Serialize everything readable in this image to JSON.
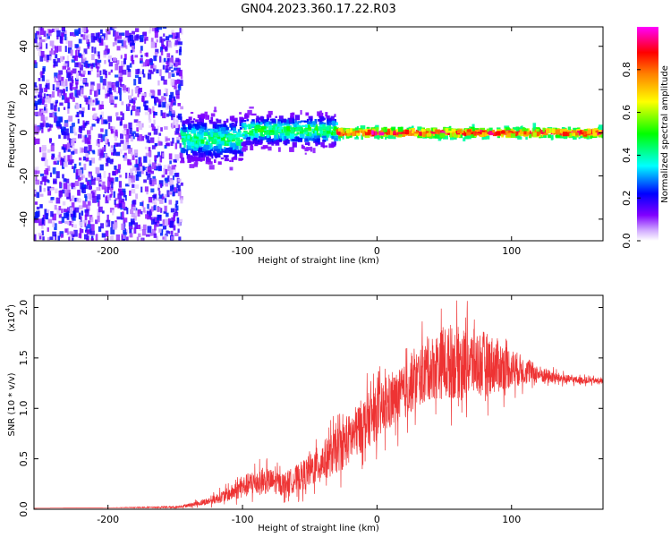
{
  "title": "GN04.2023.360.17.22.R03",
  "chart_data": [
    {
      "type": "heatmap",
      "title": "GN04.2023.360.17.22.R03",
      "xlabel": "Height of straight line (km)",
      "ylabel": "Frequency (Hz)",
      "xlim": [
        -255,
        168
      ],
      "ylim": [
        -50,
        49
      ],
      "xticks": [
        -200,
        -100,
        0,
        100
      ],
      "yticks": [
        -40,
        -20,
        0,
        20,
        40
      ],
      "xtick_labels": [
        "-200",
        "-100",
        "0",
        "100"
      ],
      "ytick_labels": [
        "-40",
        "-20",
        "0",
        "20",
        "40"
      ],
      "regions": [
        {
          "x_range": [
            -255,
            -145
          ],
          "description_level": "noise",
          "amplitude_range": [
            0.02,
            0.25
          ],
          "freq_spread": [
            -50,
            49
          ]
        },
        {
          "x_range": [
            -145,
            -100
          ],
          "center_freq": -3,
          "half_width": 10,
          "amplitude_range": [
            0.1,
            0.5
          ]
        },
        {
          "x_range": [
            -100,
            -30
          ],
          "center_freq": 1,
          "half_width": 7,
          "amplitude_range": [
            0.1,
            0.55
          ]
        },
        {
          "x_range": [
            -30,
            168
          ],
          "center_freq": 0,
          "half_width": 2,
          "amplitude_range": [
            0.4,
            1.0
          ]
        }
      ],
      "colorbar": {
        "label": "Normalized spectral amplitude",
        "range": [
          0,
          1
        ],
        "ticks": [
          0.0,
          0.2,
          0.4,
          0.6,
          0.8
        ],
        "tick_labels": [
          "0.0",
          "0.2",
          "0.4",
          "0.6",
          "0.8"
        ],
        "colors": [
          "#ffffff",
          "#8000ff",
          "#0000ff",
          "#00ffff",
          "#00ff00",
          "#ffff00",
          "#ff8000",
          "#ff0000",
          "#ff00ff"
        ]
      }
    },
    {
      "type": "line",
      "xlabel": "Height of straight line (km)",
      "ylabel": "SNR (10 * v/v)",
      "y_multiplier": "(x10",
      "y_multiplier_exp": "4",
      "y_multiplier_close": ")",
      "xlim": [
        -255,
        168
      ],
      "ylim": [
        0,
        2.12
      ],
      "xticks": [
        -200,
        -100,
        0,
        100
      ],
      "yticks": [
        0.0,
        0.5,
        1.0,
        1.5,
        2.0
      ],
      "xtick_labels": [
        "-200",
        "-100",
        "0",
        "100"
      ],
      "ytick_labels": [
        "0.0",
        "0.5",
        "1.0",
        "1.5",
        "2.0"
      ],
      "color": "#ee3333",
      "series": [
        {
          "name": "SNR",
          "x": [
            -255,
            -200,
            -150,
            -140,
            -125,
            -110,
            -100,
            -90,
            -80,
            -70,
            -60,
            -50,
            -40,
            -30,
            -20,
            -10,
            0,
            10,
            20,
            30,
            40,
            50,
            60,
            70,
            80,
            90,
            100,
            110,
            120,
            130,
            140,
            150,
            168
          ],
          "y": [
            0.01,
            0.015,
            0.02,
            0.04,
            0.08,
            0.15,
            0.22,
            0.27,
            0.28,
            0.25,
            0.3,
            0.38,
            0.48,
            0.58,
            0.7,
            0.85,
            0.95,
            1.05,
            1.15,
            1.3,
            1.4,
            1.45,
            1.45,
            1.45,
            1.45,
            1.42,
            1.4,
            1.37,
            1.34,
            1.31,
            1.29,
            1.28,
            1.27
          ],
          "noise_amplitude": [
            0.0,
            0.0,
            0.01,
            0.02,
            0.04,
            0.08,
            0.12,
            0.15,
            0.14,
            0.12,
            0.15,
            0.18,
            0.22,
            0.25,
            0.28,
            0.3,
            0.3,
            0.3,
            0.3,
            0.32,
            0.35,
            0.4,
            0.4,
            0.38,
            0.35,
            0.3,
            0.22,
            0.15,
            0.1,
            0.07,
            0.05,
            0.04,
            0.03
          ]
        }
      ]
    }
  ]
}
